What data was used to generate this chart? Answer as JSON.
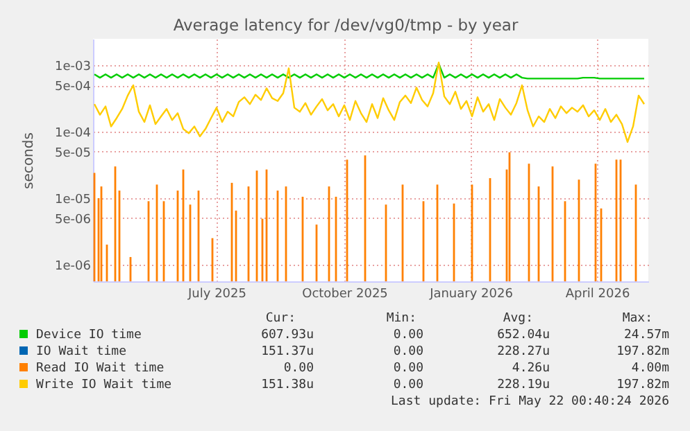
{
  "chart_data": {
    "type": "line",
    "title": "Average latency for /dev/vg0/tmp - by year",
    "ylabel": "seconds",
    "log": true,
    "grid": true,
    "legend": "bottom",
    "xlim": [
      "2025-04-17",
      "2026-05-22"
    ],
    "xticks": [
      {
        "value": "2025-07-15",
        "label": "July 2025"
      },
      {
        "value": "2025-10-15",
        "label": "October 2025"
      },
      {
        "value": "2026-01-14",
        "label": "January 2026"
      },
      {
        "value": "2026-04-15",
        "label": "April 2026"
      }
    ],
    "ylim": [
      5.6e-07,
      0.0025
    ],
    "yticks": [
      {
        "value": 1e-06,
        "label": "1e-06"
      },
      {
        "value": 5e-06,
        "label": "5e-06"
      },
      {
        "value": 1e-05,
        "label": "1e-05"
      },
      {
        "value": 5e-05,
        "label": "5e-05"
      },
      {
        "value": 0.0001,
        "label": "1e-04"
      },
      {
        "value": 0.0005,
        "label": "5e-04"
      },
      {
        "value": 0.001,
        "label": "1e-03"
      }
    ],
    "x": [
      "2025-04-18",
      "2025-04-22",
      "2025-04-26",
      "2025-04-30",
      "2025-05-04",
      "2025-05-08",
      "2025-05-12",
      "2025-05-16",
      "2025-05-20",
      "2025-05-24",
      "2025-05-28",
      "2025-06-01",
      "2025-06-05",
      "2025-06-09",
      "2025-06-13",
      "2025-06-17",
      "2025-06-21",
      "2025-06-25",
      "2025-06-29",
      "2025-07-03",
      "2025-07-07",
      "2025-07-11",
      "2025-07-15",
      "2025-07-19",
      "2025-07-23",
      "2025-07-27",
      "2025-07-31",
      "2025-08-04",
      "2025-08-08",
      "2025-08-12",
      "2025-08-16",
      "2025-08-20",
      "2025-08-24",
      "2025-08-28",
      "2025-09-01",
      "2025-09-05",
      "2025-09-09",
      "2025-09-13",
      "2025-09-17",
      "2025-09-21",
      "2025-09-25",
      "2025-09-29",
      "2025-10-03",
      "2025-10-07",
      "2025-10-11",
      "2025-10-15",
      "2025-10-19",
      "2025-10-23",
      "2025-10-27",
      "2025-10-31",
      "2025-11-04",
      "2025-11-08",
      "2025-11-12",
      "2025-11-16",
      "2025-11-20",
      "2025-11-24",
      "2025-11-28",
      "2025-12-02",
      "2025-12-06",
      "2025-12-10",
      "2025-12-14",
      "2025-12-18",
      "2025-12-22",
      "2025-12-26",
      "2025-12-30",
      "2026-01-03",
      "2026-01-07",
      "2026-01-11",
      "2026-01-15",
      "2026-01-19",
      "2026-01-23",
      "2026-01-27",
      "2026-01-31",
      "2026-02-04",
      "2026-02-08",
      "2026-02-12",
      "2026-02-16",
      "2026-02-20",
      "2026-02-24",
      "2026-02-28",
      "2026-03-04",
      "2026-03-08",
      "2026-03-12",
      "2026-03-16",
      "2026-03-20",
      "2026-03-24",
      "2026-03-28",
      "2026-04-01",
      "2026-04-05",
      "2026-04-09",
      "2026-04-13",
      "2026-04-17",
      "2026-04-21",
      "2026-04-25",
      "2026-04-29",
      "2026-05-03",
      "2026-05-07",
      "2026-05-11",
      "2026-05-15",
      "2026-05-19"
    ],
    "series": [
      {
        "name": "Device IO time",
        "color": "#00cc00",
        "values": [
          0.00073,
          0.00065,
          0.00073,
          0.00065,
          0.00073,
          0.00065,
          0.00073,
          0.00065,
          0.00073,
          0.00065,
          0.00073,
          0.00065,
          0.00073,
          0.00065,
          0.00073,
          0.00065,
          0.00073,
          0.00065,
          0.00073,
          0.00065,
          0.00073,
          0.00065,
          0.00073,
          0.00065,
          0.00073,
          0.00065,
          0.00073,
          0.00065,
          0.00073,
          0.00065,
          0.00073,
          0.00065,
          0.00073,
          0.00065,
          0.00073,
          0.00065,
          0.00073,
          0.00065,
          0.00073,
          0.00065,
          0.00073,
          0.00065,
          0.00073,
          0.00065,
          0.00073,
          0.00065,
          0.00073,
          0.00065,
          0.00073,
          0.00065,
          0.00073,
          0.00065,
          0.00073,
          0.00065,
          0.00073,
          0.00065,
          0.00073,
          0.00065,
          0.00073,
          0.00065,
          0.00073,
          0.00065,
          0.00105,
          0.00065,
          0.00073,
          0.00065,
          0.00073,
          0.00065,
          0.00073,
          0.00065,
          0.00073,
          0.00065,
          0.00073,
          0.00065,
          0.00073,
          0.00065,
          0.00073,
          0.00065,
          0.00063,
          0.00063,
          0.00063,
          0.00063,
          0.00063,
          0.00063,
          0.00063,
          0.00063,
          0.00063,
          0.00063,
          0.00065,
          0.00065,
          0.00065,
          0.00063,
          0.00063,
          0.00063,
          0.00063,
          0.00063,
          0.00063,
          0.00063,
          0.00063,
          0.00063
        ]
      },
      {
        "name": "IO Wait time",
        "color": "#0066b3",
        "values": [
          null,
          null,
          null,
          null,
          null,
          null,
          null,
          null,
          null,
          null,
          null,
          null,
          null,
          null,
          null,
          null,
          null,
          null,
          null,
          null,
          null,
          null,
          null,
          null,
          null,
          null,
          null,
          null,
          null,
          null,
          null,
          null,
          null,
          null,
          null,
          null,
          null,
          null,
          null,
          null,
          null,
          null,
          null,
          null,
          null,
          null,
          null,
          null,
          null,
          null,
          null,
          null,
          null,
          null,
          null,
          null,
          null,
          null,
          null,
          null,
          null,
          null,
          null,
          null,
          null,
          null,
          null,
          null,
          null,
          null,
          null,
          null,
          null,
          null,
          null,
          null,
          null,
          null,
          null,
          null,
          null,
          null,
          null,
          null,
          null,
          null,
          null,
          null,
          null,
          null,
          null,
          null,
          null,
          null,
          null,
          null,
          null,
          null,
          null,
          null
        ]
      },
      {
        "name": "Read IO Wait time",
        "color": "#ff8000",
        "type": "bar",
        "x": [
          "2025-04-18",
          "2025-04-21",
          "2025-04-23",
          "2025-04-27",
          "2025-05-03",
          "2025-05-06",
          "2025-05-14",
          "2025-05-27",
          "2025-06-02",
          "2025-06-07",
          "2025-06-17",
          "2025-06-21",
          "2025-06-26",
          "2025-07-02",
          "2025-07-12",
          "2025-07-26",
          "2025-07-29",
          "2025-08-07",
          "2025-08-13",
          "2025-08-17",
          "2025-08-20",
          "2025-08-28",
          "2025-09-03",
          "2025-09-15",
          "2025-09-25",
          "2025-10-04",
          "2025-10-09",
          "2025-10-17",
          "2025-10-30",
          "2025-11-14",
          "2025-11-26",
          "2025-12-11",
          "2025-12-21",
          "2026-01-02",
          "2026-01-15",
          "2026-01-28",
          "2026-02-09",
          "2026-02-11",
          "2026-02-25",
          "2026-03-04",
          "2026-03-14",
          "2026-03-23",
          "2026-04-02",
          "2026-04-14",
          "2026-04-18",
          "2026-04-29",
          "2026-05-02",
          "2026-05-13"
        ],
        "values": [
          2.4e-05,
          1e-05,
          1.5e-05,
          2e-06,
          3e-05,
          1.3e-05,
          1.3e-06,
          9e-06,
          1.6e-05,
          9e-06,
          1.3e-05,
          2.7e-05,
          8e-06,
          1.3e-05,
          2.5e-06,
          1.7e-05,
          6.5e-06,
          1.5e-05,
          2.6e-05,
          4.9e-06,
          2.7e-05,
          1.3e-05,
          1.5e-05,
          1.05e-05,
          4e-06,
          1.5e-05,
          1.05e-05,
          3.8e-05,
          4.4e-05,
          8e-06,
          1.6e-05,
          9e-06,
          1.6e-05,
          8.3e-06,
          1.6e-05,
          2e-05,
          2.7e-05,
          4.9e-05,
          3.3e-05,
          1.5e-05,
          3e-05,
          9e-06,
          1.9e-05,
          3.3e-05,
          7e-06,
          3.8e-05,
          3.8e-05,
          1.6e-05
        ]
      },
      {
        "name": "Write IO Wait time",
        "color": "#ffcc00",
        "values": [
          0.00026,
          0.00018,
          0.00024,
          0.00012,
          0.00016,
          0.00022,
          0.00035,
          0.0005,
          0.0002,
          0.00014,
          0.00025,
          0.00013,
          0.00017,
          0.00022,
          0.00015,
          0.00019,
          0.00011,
          9.5e-05,
          0.00012,
          8.5e-05,
          0.00011,
          0.00016,
          0.00023,
          0.00014,
          0.0002,
          0.00017,
          0.00028,
          0.00033,
          0.00026,
          0.00036,
          0.0003,
          0.00045,
          0.00032,
          0.00029,
          0.00038,
          0.0009,
          0.00023,
          0.0002,
          0.00027,
          0.00018,
          0.00024,
          0.00031,
          0.00021,
          0.00026,
          0.00017,
          0.00025,
          0.00015,
          0.00029,
          0.00019,
          0.00014,
          0.00026,
          0.00016,
          0.00032,
          0.00021,
          0.00015,
          0.00028,
          0.00035,
          0.00027,
          0.00046,
          0.0003,
          0.00024,
          0.00038,
          0.0011,
          0.00034,
          0.00026,
          0.0004,
          0.00022,
          0.00029,
          0.00017,
          0.00033,
          0.0002,
          0.00026,
          0.00015,
          0.00031,
          0.00023,
          0.00018,
          0.00027,
          0.0005,
          0.00021,
          0.00012,
          0.00017,
          0.00014,
          0.00022,
          0.00016,
          0.00024,
          0.00019,
          0.00023,
          0.0002,
          0.00025,
          0.00017,
          0.00021,
          0.00015,
          0.00022,
          0.00014,
          0.00018,
          0.00013,
          7e-05,
          0.00012,
          0.00035,
          0.00026
        ]
      }
    ],
    "annotations": [
      "Cur:",
      "Min:",
      "Avg:",
      "Max:",
      "607.93u",
      "0.00",
      "652.04u",
      "24.57m",
      "151.37u",
      "0.00",
      "228.27u",
      "197.82m",
      "0.00",
      "0.00",
      "4.26u",
      "4.00m",
      "151.38u",
      "0.00",
      "228.19u",
      "197.82m",
      "Last update: Fri May 22 00:40:24 2026"
    ]
  }
}
